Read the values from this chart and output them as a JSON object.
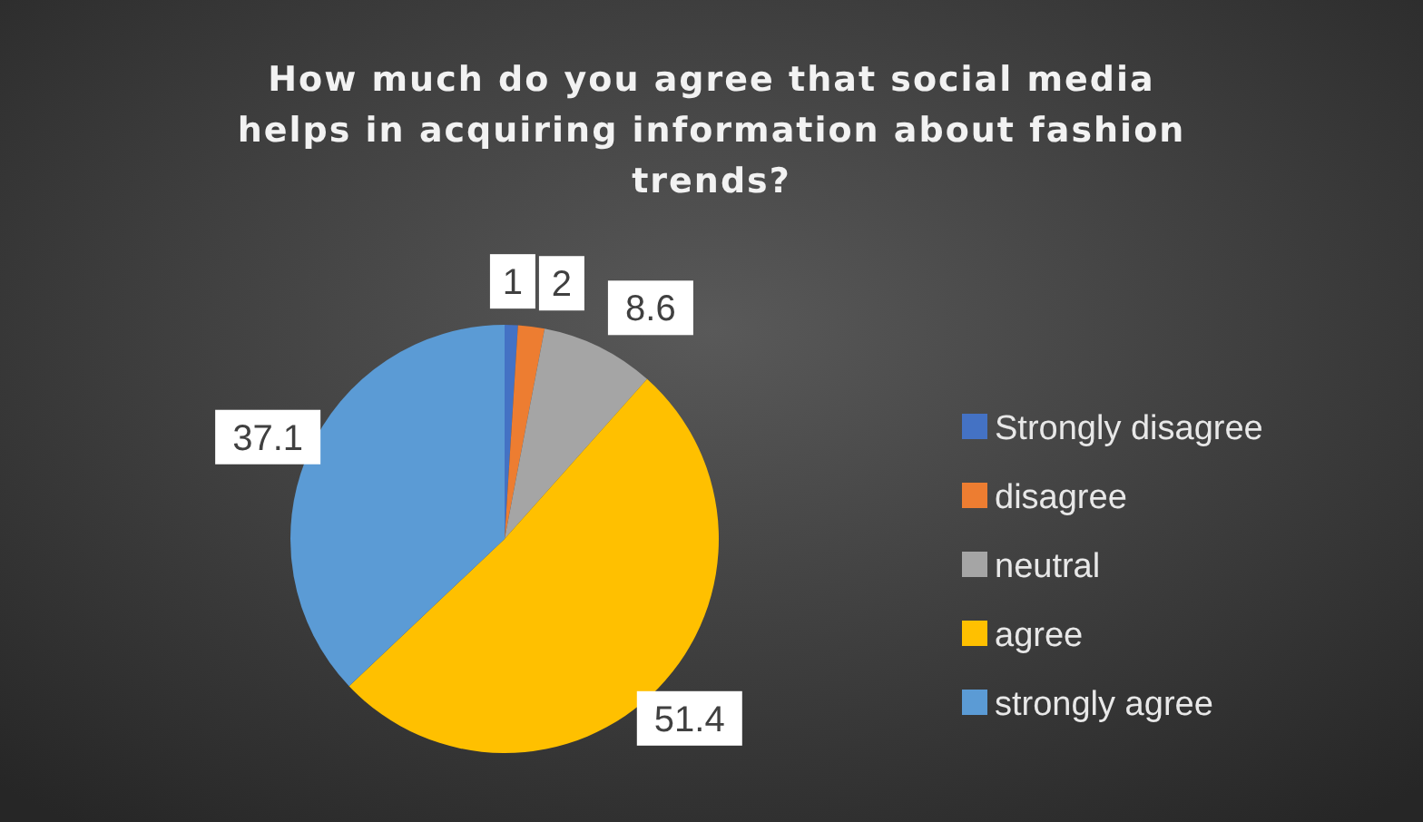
{
  "chart_data": {
    "type": "pie",
    "title": "How much do you agree that social media helps in acquiring information about fashion trends?",
    "categories": [
      "Strongly disagree",
      "disagree",
      "neutral",
      "agree",
      "strongly agree"
    ],
    "values": [
      1,
      2,
      8.6,
      51.4,
      37.1
    ],
    "colors": [
      "#4472c4",
      "#ed7d31",
      "#a5a5a5",
      "#ffc000",
      "#5b9bd5"
    ],
    "data_labels": true,
    "legend": "right"
  }
}
